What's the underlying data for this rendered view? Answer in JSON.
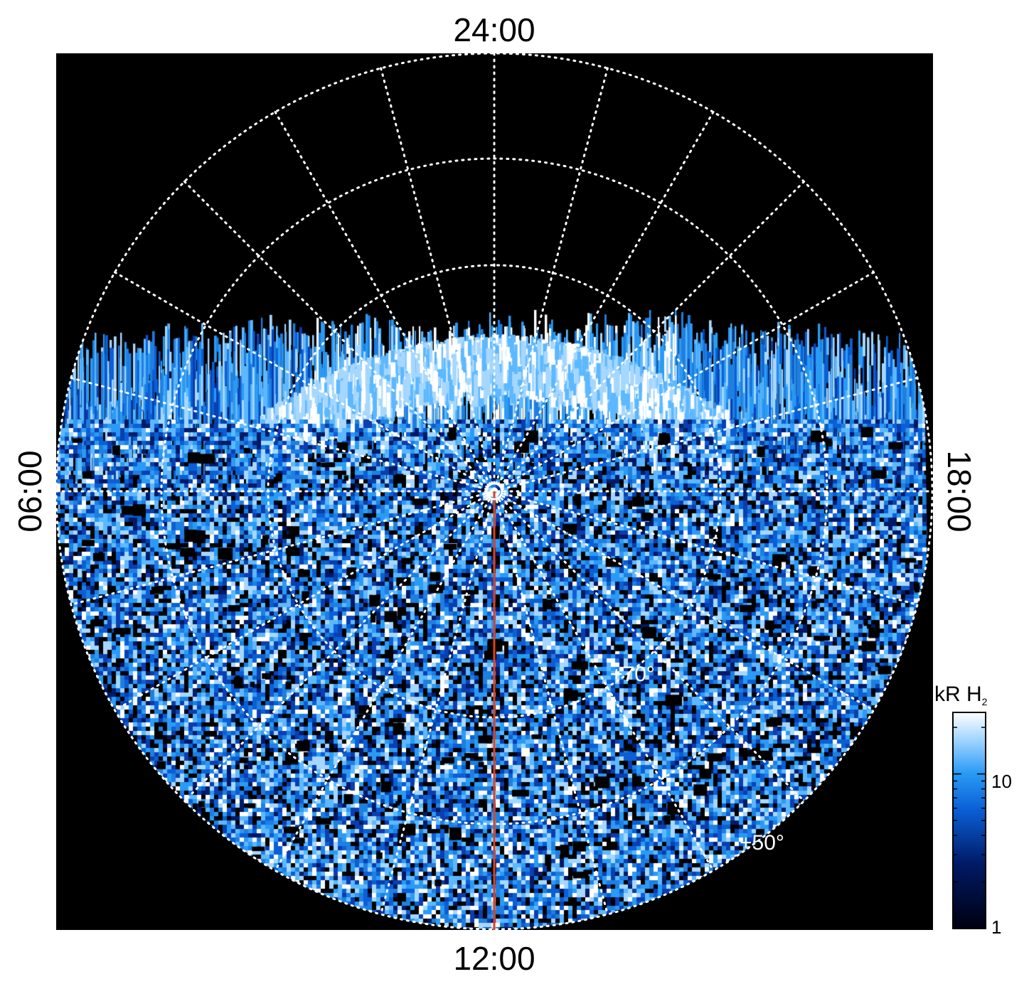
{
  "figure": {
    "local_time_labels": {
      "top": "24:00",
      "bottom": "12:00",
      "left": "06:00",
      "right": "18:00"
    },
    "latitude_labels": [
      "+70°",
      "+50°"
    ],
    "colorbar": {
      "label": "kR H",
      "label_subscript": "2",
      "scale": "log",
      "tick_labels": [
        "1",
        "10"
      ],
      "range": [
        1,
        25
      ],
      "colors": [
        "#000010",
        "#001a66",
        "#0a5fd6",
        "#2a9bf5",
        "#a6d7ff",
        "#ffffff"
      ]
    },
    "colors": {
      "background": "#000000",
      "grid": "#ffffff",
      "meridian_line": "#e0401a",
      "emission": "#1e7fe0"
    }
  }
}
